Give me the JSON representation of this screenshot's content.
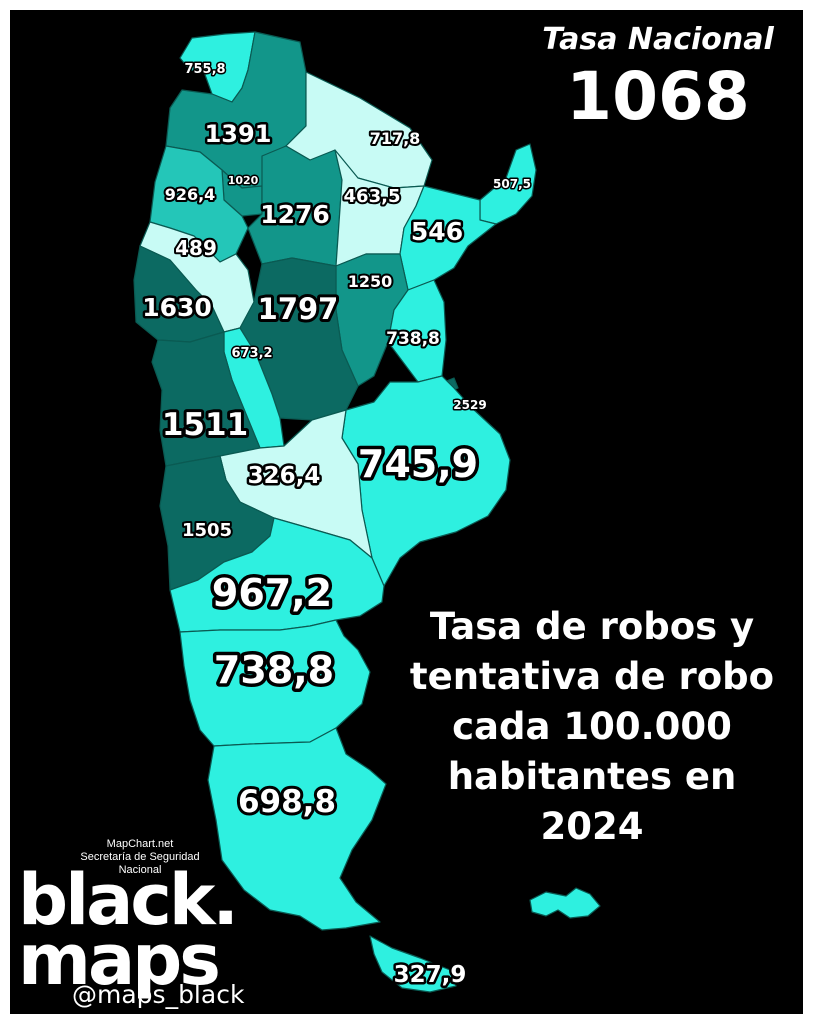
{
  "national": {
    "label": "Tasa Nacional",
    "value": "1068"
  },
  "title_lines": [
    "Tasa de robos y",
    "tentativa de robo",
    "cada 100.000",
    "habitantes en",
    "2024"
  ],
  "credits": [
    "MapChart.net",
    "Secretaría de Seguridad",
    "Nacional"
  ],
  "brand": [
    "black.",
    "maps"
  ],
  "handle": "@maps_black",
  "colors": {
    "background": "#000000",
    "lightest": "#c8fbf5",
    "light": "#2ef0e0",
    "mid": "#24c6b8",
    "dark": "#12968a",
    "darkest": "#0c6a62"
  },
  "regions": [
    {
      "name": "Jujuy",
      "value": "755,8",
      "shade": "light"
    },
    {
      "name": "Salta",
      "value": "1391",
      "shade": "dark"
    },
    {
      "name": "Formosa",
      "value": "717,8",
      "shade": "lightest"
    },
    {
      "name": "Misiones",
      "value": "507,5",
      "shade": "light"
    },
    {
      "name": "Tucumán",
      "value": "1020",
      "shade": "dark"
    },
    {
      "name": "Catamarca",
      "value": "926,4",
      "shade": "mid"
    },
    {
      "name": "Santiago del Estero",
      "value": "1276",
      "shade": "dark"
    },
    {
      "name": "Chaco",
      "value": "463,5",
      "shade": "lightest"
    },
    {
      "name": "Corrientes",
      "value": "546",
      "shade": "light"
    },
    {
      "name": "La Rioja",
      "value": "489",
      "shade": "lightest"
    },
    {
      "name": "Santa Fe",
      "value": "1250",
      "shade": "dark"
    },
    {
      "name": "San Juan",
      "value": "1630",
      "shade": "darkest"
    },
    {
      "name": "Córdoba",
      "value": "1797",
      "shade": "darkest"
    },
    {
      "name": "Entre Ríos",
      "value": "738,8",
      "shade": "light"
    },
    {
      "name": "San Luis",
      "value": "673,2",
      "shade": "light"
    },
    {
      "name": "Ciudad de Buenos Aires",
      "value": "2529",
      "shade": "darkest"
    },
    {
      "name": "Mendoza",
      "value": "1511",
      "shade": "darkest"
    },
    {
      "name": "Buenos Aires",
      "value": "745,9",
      "shade": "light"
    },
    {
      "name": "La Pampa",
      "value": "326,4",
      "shade": "lightest"
    },
    {
      "name": "Neuquén",
      "value": "1505",
      "shade": "darkest"
    },
    {
      "name": "Río Negro",
      "value": "967,2",
      "shade": "light"
    },
    {
      "name": "Chubut",
      "value": "738,8",
      "shade": "light"
    },
    {
      "name": "Santa Cruz",
      "value": "698,8",
      "shade": "light"
    },
    {
      "name": "Tierra del Fuego",
      "value": "327,9",
      "shade": "light"
    }
  ]
}
